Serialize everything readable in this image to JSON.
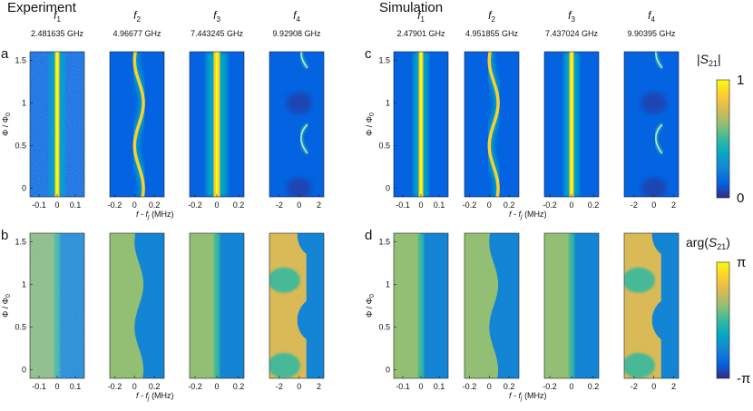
{
  "titles": {
    "experiment": "Experiment",
    "simulation": "Simulation"
  },
  "panel_letters": [
    "a",
    "b",
    "c",
    "d"
  ],
  "colorbars": {
    "magnitude": {
      "label_main": "|S",
      "label_sub": "21",
      "label_tail": "|",
      "top": "1",
      "bottom": "0"
    },
    "phase": {
      "label_main": "arg(S",
      "label_sub": "21",
      "label_tail": ")",
      "top": "π",
      "bottom": "-π"
    }
  },
  "colors": {
    "parula": [
      "#352a87",
      "#0363e1",
      "#1485d4",
      "#06a7c6",
      "#38b99e",
      "#92bf73",
      "#d9ba56",
      "#fcce2e",
      "#f9fb0e"
    ],
    "background": "#ffffff"
  },
  "chart_data": {
    "type": "heatmap",
    "columns": [
      {
        "side": "experiment",
        "f_main": "f",
        "f_sub": "1",
        "freq": "2.481635 GHz",
        "xticks": [
          "-0.1",
          "0",
          "0.1"
        ],
        "xlim": [
          -0.15,
          0.15
        ],
        "top_pattern": "line",
        "bottom_pattern": "noisy_split"
      },
      {
        "side": "experiment",
        "f_main": "f",
        "f_sub": "2",
        "freq": "4.96677 GHz",
        "xticks": [
          "-0.2",
          "0",
          "0.2"
        ],
        "xlim": [
          -0.25,
          0.3
        ],
        "top_pattern": "curve",
        "bottom_pattern": "curve_split"
      },
      {
        "side": "experiment",
        "f_main": "f",
        "f_sub": "3",
        "freq": "7.443245 GHz",
        "xticks": [
          "-0.2",
          "0",
          "0.2"
        ],
        "xlim": [
          -0.25,
          0.25
        ],
        "top_pattern": "line_wide",
        "bottom_pattern": "split"
      },
      {
        "side": "experiment",
        "f_main": "f",
        "f_sub": "4",
        "freq": "9.92908 GHz",
        "xticks": [
          "-2",
          "0",
          "2"
        ],
        "xlim": [
          -3,
          2.5
        ],
        "top_pattern": "arcs",
        "bottom_pattern": "blocks"
      },
      {
        "side": "simulation",
        "f_main": "f",
        "f_sub": "1",
        "freq": "2.47901 GHz",
        "xticks": [
          "-0.1",
          "0",
          "0.1"
        ],
        "xlim": [
          -0.15,
          0.15
        ],
        "top_pattern": "line",
        "bottom_pattern": "split"
      },
      {
        "side": "simulation",
        "f_main": "f",
        "f_sub": "2",
        "freq": "4.951855 GHz",
        "xticks": [
          "-0.2",
          "0",
          "0.2"
        ],
        "xlim": [
          -0.25,
          0.3
        ],
        "top_pattern": "curve",
        "bottom_pattern": "curve_split"
      },
      {
        "side": "simulation",
        "f_main": "f",
        "f_sub": "3",
        "freq": "7.437024 GHz",
        "xticks": [
          "-0.2",
          "0",
          "0.2"
        ],
        "xlim": [
          -0.25,
          0.25
        ],
        "top_pattern": "line",
        "bottom_pattern": "split"
      },
      {
        "side": "simulation",
        "f_main": "f",
        "f_sub": "4",
        "freq": "9.90395 GHz",
        "xticks": [
          "-2",
          "0",
          "2"
        ],
        "xlim": [
          -3,
          2.5
        ],
        "top_pattern": "arcs",
        "bottom_pattern": "blocks"
      }
    ],
    "ylabel": "Φ / Φ",
    "ylabel_sub": "0",
    "yticks": [
      "0",
      "0.5",
      "1",
      "1.5"
    ],
    "ytick_values": [
      0,
      0.5,
      1,
      1.5
    ],
    "ylim": [
      -0.1,
      1.6
    ],
    "xlabel_main": "f - f",
    "xlabel_sub": "j",
    "xlabel_unit": " (MHz)",
    "magnitude_range": [
      0,
      1
    ],
    "phase_range": [
      "-π",
      "π"
    ]
  }
}
